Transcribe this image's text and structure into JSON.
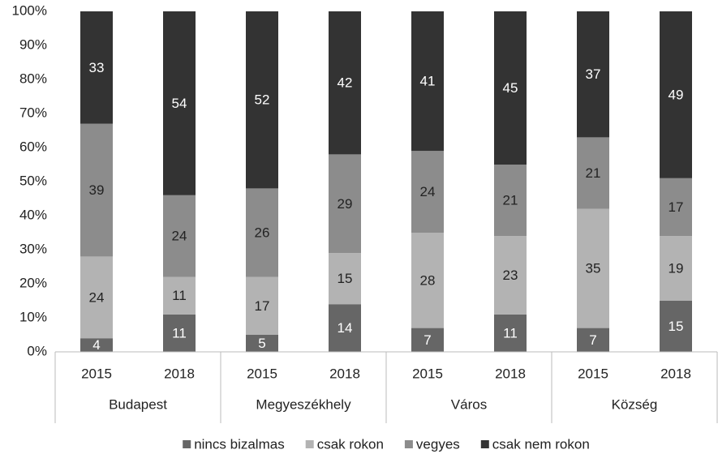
{
  "chart_data": {
    "type": "stacked_bar",
    "categories": [
      "2015",
      "2018",
      "2015",
      "2018",
      "2015",
      "2018",
      "2015",
      "2018"
    ],
    "groups": [
      "Budapest",
      "Megyeszékhely",
      "Város",
      "Község"
    ],
    "series": [
      {
        "name": "nincs bizalmas",
        "color": "#666666",
        "values": [
          4,
          11,
          5,
          14,
          7,
          11,
          7,
          15
        ]
      },
      {
        "name": "csak rokon",
        "color": "#b3b3b3",
        "values": [
          24,
          11,
          17,
          15,
          28,
          23,
          35,
          19
        ]
      },
      {
        "name": "vegyes",
        "color": "#8c8c8c",
        "values": [
          39,
          24,
          26,
          29,
          24,
          21,
          21,
          17
        ]
      },
      {
        "name": "csak nem rokon",
        "color": "#333333",
        "values": [
          33,
          54,
          52,
          42,
          41,
          45,
          37,
          49
        ]
      }
    ],
    "ylim": [
      0,
      100
    ],
    "yticks": [
      {
        "value": 0,
        "label": "0%"
      },
      {
        "value": 10,
        "label": "10%"
      },
      {
        "value": 20,
        "label": "20%"
      },
      {
        "value": 30,
        "label": "30%"
      },
      {
        "value": 40,
        "label": "40%"
      },
      {
        "value": 50,
        "label": "50%"
      },
      {
        "value": 60,
        "label": "60%"
      },
      {
        "value": 70,
        "label": "70%"
      },
      {
        "value": 80,
        "label": "80%"
      },
      {
        "value": 90,
        "label": "90%"
      },
      {
        "value": 100,
        "label": "100%"
      }
    ],
    "grid": false,
    "legend": "bottom"
  }
}
